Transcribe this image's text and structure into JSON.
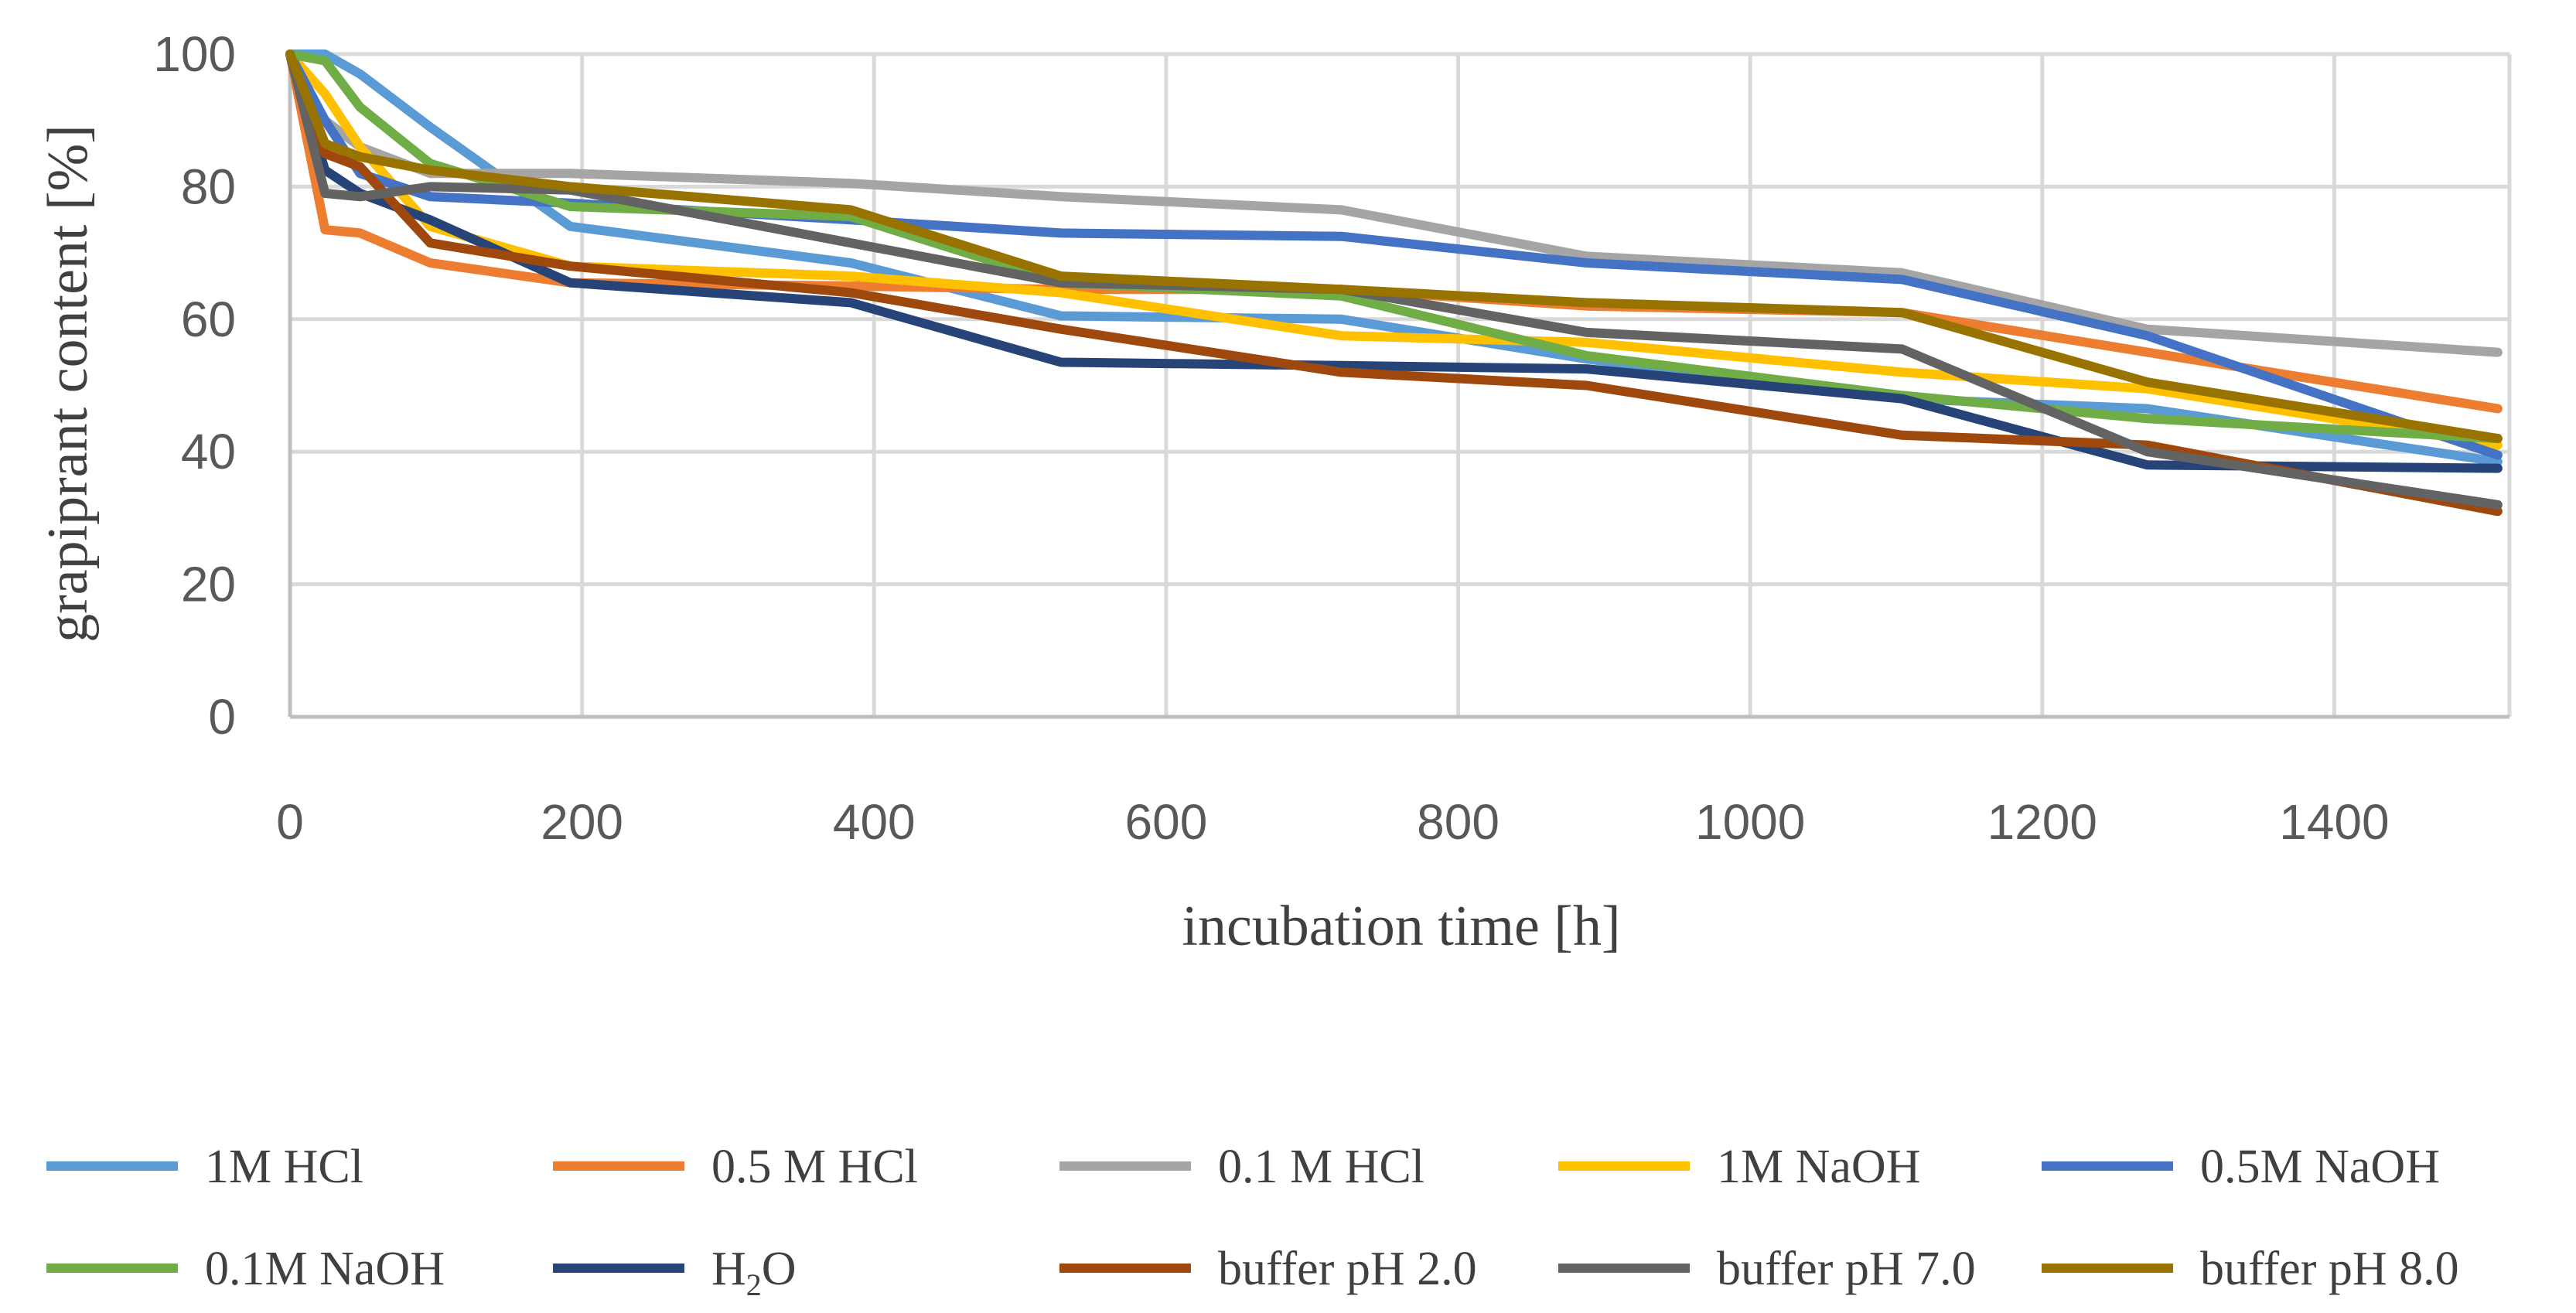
{
  "chart_data": {
    "type": "line",
    "title": "",
    "xlabel": "incubation time [h]",
    "ylabel": "grapiprant content [%]",
    "xlim": [
      0,
      1520
    ],
    "ylim": [
      0,
      100
    ],
    "xticks": [
      0,
      200,
      400,
      600,
      800,
      1000,
      1200,
      1400
    ],
    "yticks": [
      0,
      20,
      40,
      60,
      80,
      100
    ],
    "grid": true,
    "legend_position": "bottom",
    "series": [
      {
        "name": "1M HCl",
        "label_main": "1M HCl",
        "label_sub": "",
        "label_tail": "",
        "color": "#5b9bd5",
        "x": [
          0,
          24,
          48,
          96,
          192,
          384,
          528,
          720,
          888,
          1104,
          1272,
          1512
        ],
        "y": [
          100,
          100,
          97,
          89,
          74,
          68.5,
          60.5,
          60,
          54,
          48,
          46.5,
          38.5
        ]
      },
      {
        "name": "0.5 M HCl",
        "label_main": "0.5 M HCl",
        "label_sub": "",
        "label_tail": "",
        "color": "#ed7d31",
        "x": [
          0,
          24,
          48,
          96,
          192,
          384,
          528,
          720,
          888,
          1104,
          1272,
          1512
        ],
        "y": [
          100,
          73.5,
          73,
          68.5,
          65.5,
          65,
          64.5,
          64.5,
          62,
          61,
          55,
          46.5
        ]
      },
      {
        "name": "0.1 M HCl",
        "label_main": "0.1 M HCl",
        "label_sub": "",
        "label_tail": "",
        "color": "#a5a5a5",
        "x": [
          0,
          24,
          48,
          96,
          192,
          384,
          528,
          720,
          888,
          1104,
          1272,
          1512
        ],
        "y": [
          100,
          90,
          86,
          82,
          82,
          80.5,
          78.5,
          76.5,
          69.5,
          67,
          58.5,
          55
        ]
      },
      {
        "name": "1M NaOH",
        "label_main": "1M NaOH",
        "label_sub": "",
        "label_tail": "",
        "color": "#ffc000",
        "x": [
          0,
          24,
          48,
          96,
          192,
          384,
          528,
          720,
          888,
          1104,
          1272,
          1512
        ],
        "y": [
          100,
          94,
          86,
          74,
          68,
          66.5,
          64,
          57.5,
          56.5,
          52,
          49.5,
          41
        ]
      },
      {
        "name": "0.5M NaOH",
        "label_main": "0.5M NaOH",
        "label_sub": "",
        "label_tail": "",
        "color": "#4472c4",
        "x": [
          0,
          24,
          48,
          96,
          192,
          384,
          528,
          720,
          888,
          1104,
          1272,
          1512
        ],
        "y": [
          100,
          90,
          82,
          78.5,
          77.5,
          75,
          73,
          72.5,
          68.5,
          66,
          57.5,
          39.5
        ]
      },
      {
        "name": "0.1M NaOH",
        "label_main": "0.1M NaOH",
        "label_sub": "",
        "label_tail": "",
        "color": "#70ad47",
        "x": [
          0,
          24,
          48,
          96,
          192,
          384,
          528,
          720,
          888,
          1104,
          1272,
          1512
        ],
        "y": [
          100,
          99,
          92,
          83.5,
          77,
          75.5,
          65.5,
          63.5,
          54.5,
          48.5,
          45,
          42
        ]
      },
      {
        "name": "H2O",
        "label_main": "H",
        "label_sub": "2",
        "label_tail": "O",
        "color": "#264478",
        "x": [
          0,
          24,
          48,
          96,
          192,
          384,
          528,
          720,
          888,
          1104,
          1272,
          1512
        ],
        "y": [
          100,
          82.5,
          79,
          75,
          65.5,
          62.5,
          53.5,
          53,
          52.5,
          48,
          38,
          37.5
        ]
      },
      {
        "name": "buffer pH 2.0",
        "label_main": "buffer pH 2.0",
        "label_sub": "",
        "label_tail": "",
        "color": "#9e480e",
        "x": [
          0,
          24,
          48,
          96,
          192,
          384,
          528,
          720,
          888,
          1104,
          1272,
          1512
        ],
        "y": [
          100,
          85,
          83,
          71.5,
          68,
          64,
          58.5,
          52,
          50,
          42.5,
          41,
          31
        ]
      },
      {
        "name": "buffer pH 7.0",
        "label_main": "buffer pH 7.0",
        "label_sub": "",
        "label_tail": "",
        "color": "#636363",
        "x": [
          0,
          24,
          48,
          96,
          192,
          384,
          528,
          720,
          888,
          1104,
          1272,
          1512
        ],
        "y": [
          100,
          79,
          78.5,
          80,
          79.5,
          71.5,
          65.5,
          64.5,
          58,
          55.5,
          40,
          32
        ]
      },
      {
        "name": "buffer pH 8.0",
        "label_main": "buffer pH 8.0",
        "label_sub": "",
        "label_tail": "",
        "color": "#997300",
        "x": [
          0,
          24,
          48,
          96,
          192,
          384,
          528,
          720,
          888,
          1104,
          1272,
          1512
        ],
        "y": [
          100,
          86.5,
          84.5,
          82.5,
          80,
          76.5,
          66.5,
          64.5,
          62.5,
          61,
          50.5,
          42
        ]
      }
    ]
  }
}
